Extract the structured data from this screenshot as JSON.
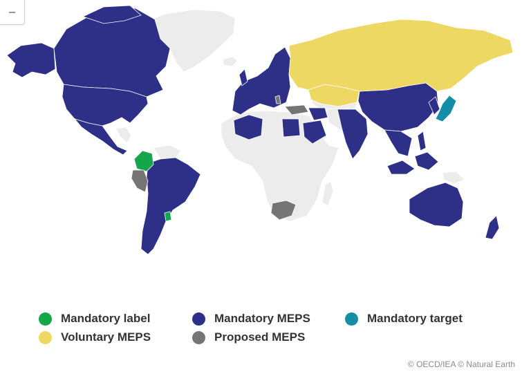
{
  "map": {
    "zoom_out_label": "–",
    "colors": {
      "mandatory_label": "#15a54a",
      "mandatory_meps": "#2e2f86",
      "mandatory_target": "#148da6",
      "voluntary_meps": "#ecd862",
      "proposed_meps": "#757575",
      "no_data": "#ececec",
      "border": "#ffffff"
    }
  },
  "legend": {
    "items": [
      {
        "label": "Mandatory label",
        "color": "#15a54a"
      },
      {
        "label": "Mandatory MEPS",
        "color": "#2e2f86"
      },
      {
        "label": "Mandatory target",
        "color": "#148da6"
      },
      {
        "label": "Voluntary MEPS",
        "color": "#ecd862"
      },
      {
        "label": "Proposed MEPS",
        "color": "#757575"
      }
    ]
  },
  "attribution": "© OECD/IEA © Natural Earth"
}
